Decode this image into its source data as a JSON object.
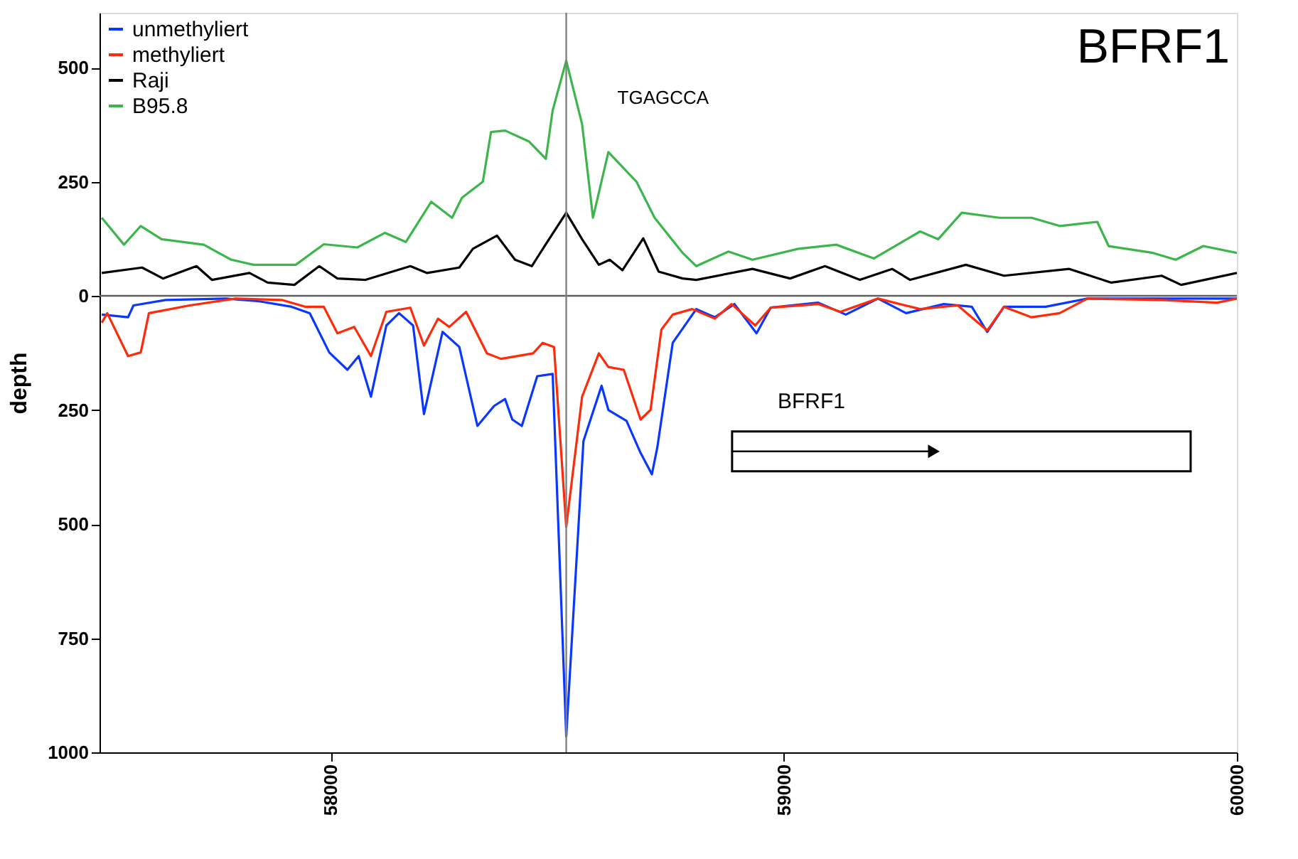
{
  "chart_data": {
    "type": "line",
    "title": "BFRF1",
    "ylabel": "depth",
    "xlim": [
      57490,
      60000
    ],
    "xticks": [
      58000,
      59000,
      60000
    ],
    "ylim": [
      -1000,
      620
    ],
    "yticks": [
      {
        "value": -1000,
        "label": "1000"
      },
      {
        "value": -750,
        "label": "750"
      },
      {
        "value": -500,
        "label": "500"
      },
      {
        "value": -250,
        "label": "250"
      },
      0,
      250,
      500
    ],
    "grid": false,
    "legend": "top left",
    "line_style": "solid",
    "marker": "none",
    "ref_lines": [
      {
        "axis": "y",
        "value": 0,
        "color": "#606060"
      },
      {
        "axis": "x",
        "value": 58520,
        "label": "TGAGCCA",
        "color": "#808080"
      }
    ],
    "bands": [
      {
        "axis": "x",
        "from": 58886,
        "to": 59898,
        "label": "BFRF1"
      }
    ],
    "series": [
      {
        "name": "unmethyliert",
        "color": "#0a37ff",
        "x": [
          57495,
          57553,
          57565,
          57636,
          57769,
          57843,
          57914,
          57954,
          57997,
          58037,
          58062,
          58089,
          58123,
          58151,
          58182,
          58206,
          58247,
          58284,
          58324,
          58361,
          58385,
          58401,
          58422,
          58456,
          58490,
          58520,
          58558,
          58598,
          58613,
          58653,
          58684,
          58709,
          58721,
          58755,
          58807,
          58848,
          58891,
          58940,
          58971,
          59076,
          59137,
          59208,
          59270,
          59353,
          59415,
          59449,
          59486,
          59578,
          59670,
          60000
        ],
        "values": [
          -41,
          -47,
          -21,
          -9,
          -6,
          -12,
          -24,
          -38,
          -124,
          -162,
          -132,
          -221,
          -65,
          -38,
          -65,
          -259,
          -79,
          -112,
          -285,
          -241,
          -226,
          -271,
          -285,
          -176,
          -171,
          -965,
          -318,
          -197,
          -250,
          -274,
          -344,
          -391,
          -332,
          -103,
          -29,
          -47,
          -18,
          -82,
          -26,
          -15,
          -41,
          -6,
          -38,
          -18,
          -24,
          -79,
          -24,
          -24,
          -6,
          -6
        ]
      },
      {
        "name": "methyliert",
        "color": "#ff2a0a",
        "x": [
          57495,
          57507,
          57553,
          57581,
          57599,
          57689,
          57790,
          57892,
          57945,
          57985,
          58015,
          58052,
          58089,
          58123,
          58176,
          58206,
          58237,
          58262,
          58299,
          58345,
          58376,
          58447,
          58468,
          58493,
          58520,
          58555,
          58592,
          58613,
          58647,
          58684,
          58706,
          58730,
          58755,
          58798,
          58848,
          58885,
          58937,
          58971,
          59076,
          59125,
          59208,
          59301,
          59384,
          59449,
          59486,
          59547,
          59609,
          59670,
          59834,
          59957,
          60000
        ],
        "values": [
          -59,
          -38,
          -132,
          -124,
          -38,
          -21,
          -6,
          -9,
          -24,
          -24,
          -82,
          -68,
          -132,
          -35,
          -26,
          -109,
          -50,
          -68,
          -35,
          -126,
          -138,
          -126,
          -103,
          -112,
          -506,
          -221,
          -126,
          -156,
          -162,
          -271,
          -250,
          -74,
          -41,
          -29,
          -50,
          -18,
          -65,
          -26,
          -18,
          -35,
          -6,
          -29,
          -21,
          -76,
          -24,
          -47,
          -38,
          -6,
          -9,
          -15,
          -6
        ]
      },
      {
        "name": "Raji",
        "color": "#000000",
        "x": [
          57495,
          57584,
          57630,
          57704,
          57738,
          57821,
          57861,
          57920,
          57975,
          58015,
          58077,
          58176,
          58213,
          58284,
          58314,
          58367,
          58407,
          58444,
          58478,
          58520,
          58555,
          58592,
          58616,
          58644,
          58690,
          58724,
          58777,
          58807,
          58931,
          59014,
          59091,
          59168,
          59239,
          59279,
          59402,
          59486,
          59630,
          59723,
          59834,
          59877,
          60000
        ],
        "values": [
          50,
          62,
          38,
          65,
          35,
          50,
          29,
          24,
          65,
          38,
          35,
          65,
          50,
          62,
          103,
          132,
          79,
          65,
          118,
          182,
          124,
          68,
          79,
          56,
          126,
          53,
          38,
          35,
          59,
          38,
          65,
          35,
          59,
          35,
          68,
          44,
          59,
          29,
          44,
          24,
          50
        ]
      },
      {
        "name": "B95.8",
        "color": "#3cb54a",
        "x": [
          57495,
          57544,
          57581,
          57627,
          57720,
          57781,
          57830,
          57923,
          57985,
          58059,
          58120,
          58166,
          58222,
          58268,
          58290,
          58336,
          58354,
          58385,
          58438,
          58475,
          58490,
          58520,
          58555,
          58579,
          58613,
          58675,
          58715,
          58777,
          58807,
          58878,
          58931,
          59032,
          59116,
          59199,
          59301,
          59341,
          59393,
          59476,
          59547,
          59609,
          59692,
          59717,
          59815,
          59865,
          59926,
          60000
        ],
        "values": [
          171,
          112,
          153,
          124,
          112,
          79,
          68,
          68,
          113,
          106,
          138,
          118,
          206,
          171,
          215,
          250,
          359,
          362,
          338,
          300,
          406,
          515,
          376,
          171,
          315,
          250,
          171,
          94,
          65,
          97,
          79,
          103,
          112,
          82,
          141,
          124,
          182,
          171,
          171,
          153,
          162,
          109,
          94,
          79,
          109,
          94
        ]
      }
    ]
  }
}
